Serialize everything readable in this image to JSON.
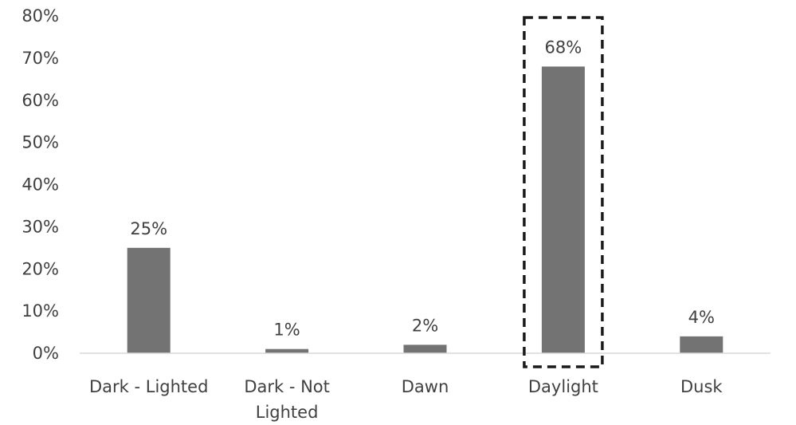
{
  "chart_data": {
    "type": "bar",
    "categories": [
      [
        "Dark - Lighted"
      ],
      [
        "Dark - Not",
        "Lighted"
      ],
      [
        "Dawn"
      ],
      [
        "Daylight"
      ],
      [
        "Dusk"
      ]
    ],
    "values": [
      25,
      1,
      2,
      68,
      4
    ],
    "data_labels": [
      "25%",
      "1%",
      "2%",
      "68%",
      "4%"
    ],
    "y_ticks": [
      "0%",
      "10%",
      "20%",
      "30%",
      "40%",
      "50%",
      "60%",
      "70%",
      "80%"
    ],
    "ylim": [
      0,
      80
    ],
    "title": "",
    "xlabel": "",
    "ylabel": "",
    "grid": false,
    "highlighted_category": "Daylight",
    "colors": {
      "bar": "#737373",
      "axis": "#d9d9d9",
      "text": "#404040",
      "highlight_box": "#1a1a1a"
    }
  }
}
